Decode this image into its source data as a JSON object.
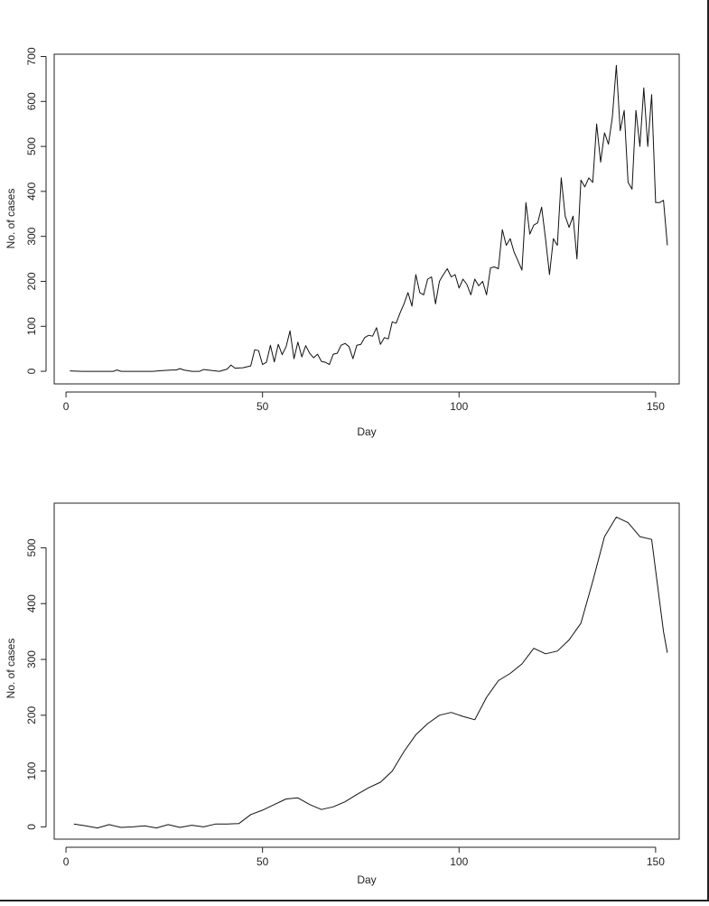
{
  "chart_data": [
    {
      "type": "line",
      "title": "",
      "xlabel": "Day",
      "ylabel": "No. of cases",
      "xlim": [
        -3,
        156
      ],
      "ylim": [
        -28,
        705
      ],
      "xticks": [
        0,
        50,
        100,
        150
      ],
      "yticks": [
        0,
        100,
        200,
        300,
        400,
        500,
        600,
        700
      ],
      "grid": false,
      "series": [
        {
          "x": [
            1,
            4,
            7,
            10,
            12,
            13,
            14,
            16,
            19,
            22,
            25,
            27,
            28,
            29,
            30,
            32,
            34,
            35,
            37,
            39,
            41,
            42,
            43,
            45,
            47,
            48,
            49,
            50,
            51,
            52,
            53,
            54,
            55,
            56,
            57,
            58,
            59,
            60,
            61,
            62,
            63,
            64,
            65,
            66,
            67,
            68,
            69,
            70,
            71,
            72,
            73,
            74,
            75,
            76,
            77,
            78,
            79,
            80,
            81,
            82,
            83,
            84,
            85,
            86,
            87,
            88,
            89,
            90,
            91,
            92,
            93,
            94,
            95,
            96,
            97,
            98,
            99,
            100,
            101,
            102,
            103,
            104,
            105,
            106,
            107,
            108,
            109,
            110,
            111,
            112,
            113,
            114,
            115,
            116,
            117,
            118,
            119,
            120,
            121,
            122,
            123,
            124,
            125,
            126,
            127,
            128,
            129,
            130,
            131,
            132,
            133,
            134,
            135,
            136,
            137,
            138,
            139,
            140,
            141,
            142,
            143,
            144,
            145,
            146,
            147,
            148,
            149,
            150,
            151,
            152,
            153
          ],
          "y": [
            1,
            0,
            0,
            0,
            0,
            3,
            0,
            0,
            0,
            0,
            2,
            3,
            3,
            6,
            3,
            0,
            0,
            4,
            2,
            0,
            5,
            14,
            7,
            8,
            12,
            48,
            46,
            15,
            20,
            58,
            21,
            60,
            37,
            55,
            90,
            28,
            65,
            32,
            57,
            40,
            30,
            38,
            22,
            20,
            15,
            38,
            40,
            58,
            62,
            55,
            28,
            58,
            60,
            75,
            80,
            78,
            97,
            60,
            75,
            72,
            110,
            107,
            130,
            150,
            175,
            145,
            215,
            175,
            170,
            205,
            210,
            150,
            200,
            215,
            228,
            210,
            215,
            185,
            205,
            193,
            170,
            205,
            190,
            200,
            170,
            230,
            232,
            228,
            315,
            280,
            295,
            265,
            245,
            225,
            375,
            305,
            325,
            330,
            365,
            295,
            215,
            295,
            280,
            430,
            345,
            320,
            345,
            250,
            425,
            410,
            430,
            420,
            550,
            465,
            530,
            505,
            565,
            680,
            535,
            580,
            420,
            405,
            580,
            500,
            630,
            500,
            615,
            375,
            375,
            380,
            280
          ]
        }
      ]
    },
    {
      "type": "line",
      "title": "",
      "xlabel": "Day",
      "ylabel": "No. of cases",
      "xlim": [
        -3,
        156
      ],
      "ylim": [
        -22,
        580
      ],
      "xticks": [
        0,
        50,
        100,
        150
      ],
      "yticks": [
        0,
        100,
        200,
        300,
        400,
        500
      ],
      "grid": false,
      "series": [
        {
          "x": [
            2,
            5,
            8,
            11,
            14,
            17,
            20,
            23,
            26,
            29,
            32,
            35,
            38,
            41,
            44,
            47,
            50,
            53,
            56,
            59,
            62,
            65,
            68,
            71,
            74,
            77,
            80,
            83,
            86,
            89,
            92,
            95,
            98,
            101,
            104,
            107,
            110,
            113,
            116,
            119,
            122,
            125,
            128,
            131,
            134,
            137,
            140,
            143,
            146,
            149,
            152,
            153
          ],
          "y": [
            5,
            2,
            -2,
            4,
            -1,
            0,
            2,
            -2,
            4,
            -1,
            3,
            0,
            5,
            5,
            6,
            22,
            30,
            40,
            50,
            52,
            40,
            31,
            36,
            45,
            58,
            70,
            80,
            100,
            135,
            165,
            185,
            200,
            205,
            198,
            192,
            232,
            262,
            275,
            292,
            320,
            310,
            315,
            335,
            365,
            440,
            520,
            555,
            545,
            520,
            515,
            350,
            312
          ]
        }
      ]
    }
  ]
}
